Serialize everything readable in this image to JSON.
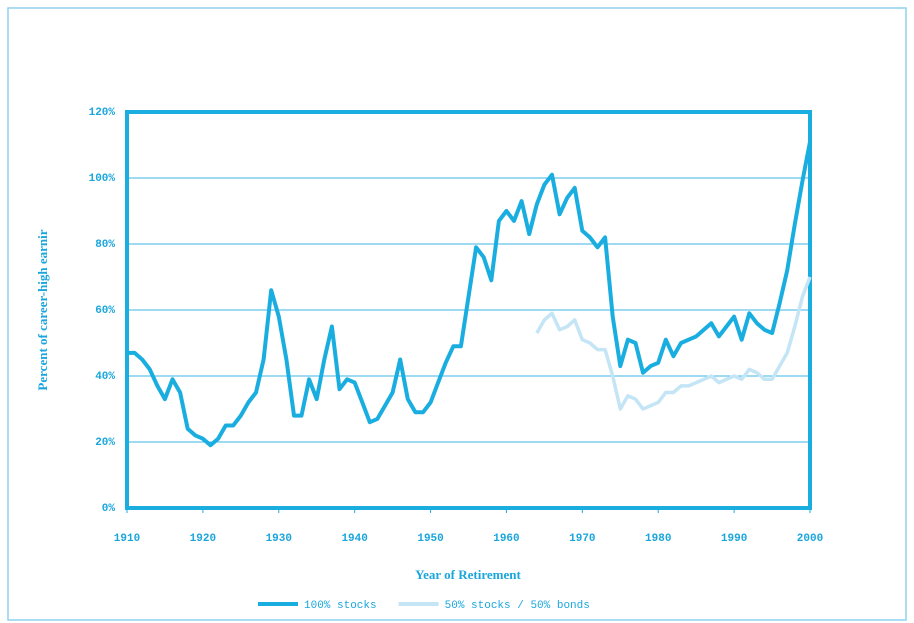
{
  "chart_data": {
    "type": "line",
    "xlabel": "Year of Retirement",
    "ylabel": "Percent of career-high earnir",
    "x": [
      1910,
      1911,
      1912,
      1913,
      1914,
      1915,
      1916,
      1917,
      1918,
      1919,
      1920,
      1921,
      1922,
      1923,
      1924,
      1925,
      1926,
      1927,
      1928,
      1929,
      1930,
      1931,
      1932,
      1933,
      1934,
      1935,
      1936,
      1937,
      1938,
      1939,
      1940,
      1941,
      1942,
      1943,
      1944,
      1945,
      1946,
      1947,
      1948,
      1949,
      1950,
      1951,
      1952,
      1953,
      1954,
      1955,
      1956,
      1957,
      1958,
      1959,
      1960,
      1961,
      1962,
      1963,
      1964,
      1965,
      1966,
      1967,
      1968,
      1969,
      1970,
      1971,
      1972,
      1973,
      1974,
      1975,
      1976,
      1977,
      1978,
      1979,
      1980,
      1981,
      1982,
      1983,
      1984,
      1985,
      1986,
      1987,
      1988,
      1989,
      1990,
      1991,
      1992,
      1993,
      1994,
      1995,
      1996,
      1997,
      1998,
      1999,
      2000
    ],
    "series": [
      {
        "name": "100% stocks",
        "color": "#1aaee0",
        "values": [
          47,
          47,
          45,
          42,
          37,
          33,
          39,
          35,
          24,
          22,
          21,
          19,
          21,
          25,
          25,
          28,
          32,
          35,
          45,
          66,
          58,
          45,
          28,
          28,
          39,
          33,
          45,
          55,
          36,
          39,
          38,
          32,
          26,
          27,
          31,
          35,
          45,
          33,
          29,
          29,
          32,
          38,
          44,
          49,
          49,
          64,
          79,
          76,
          69,
          87,
          90,
          87,
          93,
          83,
          92,
          98,
          101,
          89,
          94,
          97,
          84,
          82,
          79,
          82,
          58,
          43,
          51,
          50,
          41,
          43,
          44,
          51,
          46,
          50,
          51,
          52,
          54,
          56,
          52,
          55,
          58,
          51,
          59,
          56,
          54,
          53,
          62,
          72,
          86,
          99,
          111
        ]
      },
      {
        "name": "50% stocks / 50% bonds",
        "color": "#c4e5f5",
        "values": [
          null,
          null,
          null,
          null,
          null,
          null,
          null,
          null,
          null,
          null,
          null,
          null,
          null,
          null,
          null,
          null,
          null,
          null,
          null,
          null,
          null,
          null,
          null,
          null,
          null,
          null,
          null,
          null,
          null,
          null,
          null,
          null,
          null,
          null,
          null,
          null,
          null,
          null,
          null,
          null,
          null,
          null,
          null,
          null,
          null,
          null,
          null,
          null,
          null,
          null,
          null,
          null,
          null,
          null,
          53,
          57,
          59,
          54,
          55,
          57,
          51,
          50,
          48,
          48,
          40,
          30,
          34,
          33,
          30,
          31,
          32,
          35,
          35,
          37,
          37,
          38,
          39,
          40,
          38,
          39,
          40,
          39,
          42,
          41,
          39,
          39,
          43,
          47,
          55,
          64,
          70
        ]
      }
    ],
    "xlim": [
      1910,
      2000
    ],
    "xticks": [
      1910,
      1920,
      1930,
      1940,
      1950,
      1960,
      1970,
      1980,
      1990,
      2000
    ],
    "ylim": [
      0,
      120
    ],
    "yticks": [
      {
        "value": 0,
        "label": "0%"
      },
      {
        "value": 20,
        "label": "20%"
      },
      {
        "value": 40,
        "label": "40%"
      },
      {
        "value": 60,
        "label": "60%"
      },
      {
        "value": 80,
        "label": "80%"
      },
      {
        "value": 100,
        "label": "100%"
      },
      {
        "value": 120,
        "label": "120%"
      }
    ],
    "grid": true,
    "legend": "bottom"
  }
}
